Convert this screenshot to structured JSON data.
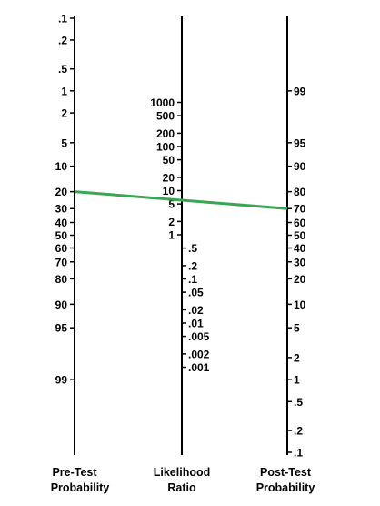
{
  "axes": {
    "pretest": {
      "title_line1": "Pre-Test",
      "title_line2": "Probability",
      "ticks": [
        {
          "label": ".1",
          "value": 0.1
        },
        {
          "label": ".2",
          "value": 0.2
        },
        {
          "label": ".5",
          "value": 0.5
        },
        {
          "label": "1",
          "value": 1
        },
        {
          "label": "2",
          "value": 2
        },
        {
          "label": "5",
          "value": 5
        },
        {
          "label": "10",
          "value": 10
        },
        {
          "label": "20",
          "value": 20
        },
        {
          "label": "30",
          "value": 30
        },
        {
          "label": "40",
          "value": 40
        },
        {
          "label": "50",
          "value": 50
        },
        {
          "label": "60",
          "value": 60
        },
        {
          "label": "70",
          "value": 70
        },
        {
          "label": "80",
          "value": 80
        },
        {
          "label": "90",
          "value": 90
        },
        {
          "label": "95",
          "value": 95
        },
        {
          "label": "99",
          "value": 99
        }
      ]
    },
    "likelihood": {
      "title_line1": "Likelihood",
      "title_line2": "Ratio",
      "ticks": [
        {
          "label": "1000",
          "value": 1000
        },
        {
          "label": "500",
          "value": 500
        },
        {
          "label": "200",
          "value": 200
        },
        {
          "label": "100",
          "value": 100
        },
        {
          "label": "50",
          "value": 50
        },
        {
          "label": "20",
          "value": 20
        },
        {
          "label": "10",
          "value": 10
        },
        {
          "label": "5",
          "value": 5
        },
        {
          "label": "2",
          "value": 2
        },
        {
          "label": "1",
          "value": 1
        },
        {
          "label": ".5",
          "value": 0.5
        },
        {
          "label": ".2",
          "value": 0.2
        },
        {
          "label": ".1",
          "value": 0.1
        },
        {
          "label": ".05",
          "value": 0.05
        },
        {
          "label": ".02",
          "value": 0.02
        },
        {
          "label": ".01",
          "value": 0.01
        },
        {
          "label": ".005",
          "value": 0.005
        },
        {
          "label": ".002",
          "value": 0.002
        },
        {
          "label": ".001",
          "value": 0.001
        }
      ]
    },
    "posttest": {
      "title_line1": "Post-Test",
      "title_line2": "Probability",
      "ticks": [
        {
          "label": "99",
          "value": 99
        },
        {
          "label": "95",
          "value": 95
        },
        {
          "label": "90",
          "value": 90
        },
        {
          "label": "80",
          "value": 80
        },
        {
          "label": "70",
          "value": 70
        },
        {
          "label": "60",
          "value": 60
        },
        {
          "label": "50",
          "value": 50
        },
        {
          "label": "40",
          "value": 40
        },
        {
          "label": "30",
          "value": 30
        },
        {
          "label": "20",
          "value": 20
        },
        {
          "label": "10",
          "value": 10
        },
        {
          "label": "5",
          "value": 5
        },
        {
          "label": "2",
          "value": 2
        },
        {
          "label": "1",
          "value": 1
        },
        {
          "label": ".5",
          "value": 0.5
        },
        {
          "label": ".2",
          "value": 0.2
        },
        {
          "label": ".1",
          "value": 0.1
        }
      ]
    }
  },
  "example_line": {
    "color": "#3aa655",
    "pretest_value": 20,
    "likelihood_value": 10,
    "posttest_value": 70
  }
}
